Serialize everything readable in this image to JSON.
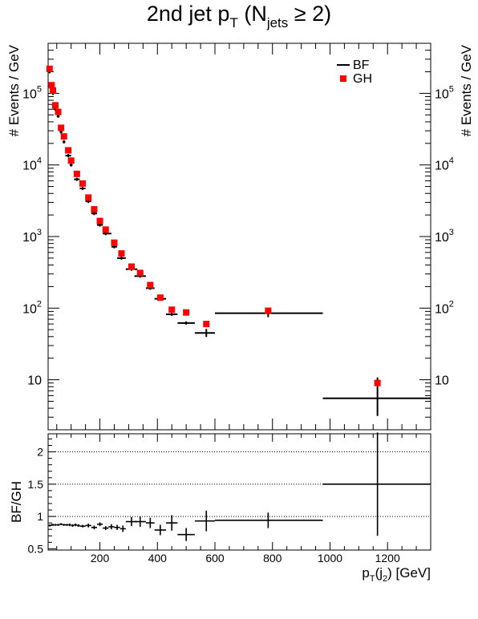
{
  "chart_data": [
    {
      "type": "scatter",
      "title": "2nd jet p",
      "title_sub": "T",
      "title_open": " (N",
      "title_sub2": "jets",
      "title_rest": " ≥ 2)",
      "xlabel": "p",
      "xlabel_sub": "T",
      "xlabel_mid": "(j",
      "xlabel_sub2": "2",
      "xlabel_end": ") [GeV]",
      "ylabel": "# Events / GeV",
      "ylabel_right": "# Events / GeV",
      "yscale": "log",
      "xlim": [
        20,
        1350
      ],
      "ylim": [
        2,
        500000
      ],
      "y_ticks": [
        {
          "v": 10,
          "label": "10",
          "exp": ""
        },
        {
          "v": 100,
          "label": "10",
          "exp": "2"
        },
        {
          "v": 1000,
          "label": "10",
          "exp": "3"
        },
        {
          "v": 10000,
          "label": "10",
          "exp": "4"
        },
        {
          "v": 100000,
          "label": "10",
          "exp": "5"
        }
      ],
      "legend": {
        "position": "top-right",
        "entries": [
          {
            "label": "BF",
            "color": "#000000",
            "marker": "line"
          },
          {
            "label": "GH",
            "color": "#ff0000",
            "marker": "square"
          }
        ]
      },
      "series": [
        {
          "name": "BF",
          "color": "#000000",
          "points": [
            {
              "x": 25,
              "xlo": 20,
              "xhi": 30,
              "y": 200000
            },
            {
              "x": 32,
              "xlo": 30,
              "xhi": 35,
              "y": 115000
            },
            {
              "x": 37,
              "xlo": 35,
              "xhi": 40,
              "y": 100000
            },
            {
              "x": 45,
              "xlo": 40,
              "xhi": 50,
              "y": 60000
            },
            {
              "x": 55,
              "xlo": 50,
              "xhi": 60,
              "y": 48000
            },
            {
              "x": 65,
              "xlo": 60,
              "xhi": 70,
              "y": 29000
            },
            {
              "x": 75,
              "xlo": 70,
              "xhi": 80,
              "y": 21000
            },
            {
              "x": 90,
              "xlo": 80,
              "xhi": 100,
              "y": 13500
            },
            {
              "x": 100,
              "xlo": 95,
              "xhi": 105,
              "y": 10000
            },
            {
              "x": 120,
              "xlo": 110,
              "xhi": 130,
              "y": 6300
            },
            {
              "x": 140,
              "xlo": 130,
              "xhi": 150,
              "y": 4700
            },
            {
              "x": 160,
              "xlo": 150,
              "xhi": 170,
              "y": 3100
            },
            {
              "x": 180,
              "xlo": 170,
              "xhi": 190,
              "y": 2100
            },
            {
              "x": 200,
              "xlo": 190,
              "xhi": 210,
              "y": 1450
            },
            {
              "x": 220,
              "xlo": 210,
              "xhi": 240,
              "y": 1100
            },
            {
              "x": 250,
              "xlo": 240,
              "xhi": 260,
              "y": 720
            },
            {
              "x": 275,
              "xlo": 260,
              "xhi": 290,
              "y": 500
            },
            {
              "x": 310,
              "xlo": 290,
              "xhi": 330,
              "y": 350
            },
            {
              "x": 340,
              "xlo": 320,
              "xhi": 360,
              "y": 280
            },
            {
              "x": 375,
              "xlo": 360,
              "xhi": 390,
              "y": 190
            },
            {
              "x": 410,
              "xlo": 390,
              "xhi": 430,
              "y": 135
            },
            {
              "x": 450,
              "xlo": 430,
              "xhi": 470,
              "y": 82
            },
            {
              "x": 500,
              "xlo": 470,
              "xhi": 530,
              "y": 62
            },
            {
              "x": 570,
              "xlo": 530,
              "xhi": 600,
              "y": 45
            },
            {
              "x": 785,
              "xlo": 600,
              "xhi": 975,
              "y": 85
            },
            {
              "x": 1165,
              "xlo": 975,
              "xhi": 1350,
              "y": 5.5
            }
          ]
        },
        {
          "name": "GH",
          "color": "#ff0000",
          "points": [
            {
              "x": 25,
              "y": 220000
            },
            {
              "x": 32,
              "y": 130000
            },
            {
              "x": 37,
              "y": 110000
            },
            {
              "x": 45,
              "y": 68000
            },
            {
              "x": 55,
              "y": 55000
            },
            {
              "x": 65,
              "y": 33000
            },
            {
              "x": 75,
              "y": 25000
            },
            {
              "x": 90,
              "y": 16000
            },
            {
              "x": 100,
              "y": 11500
            },
            {
              "x": 120,
              "y": 7500
            },
            {
              "x": 140,
              "y": 5500
            },
            {
              "x": 160,
              "y": 3500
            },
            {
              "x": 180,
              "y": 2400
            },
            {
              "x": 200,
              "y": 1650
            },
            {
              "x": 220,
              "y": 1250
            },
            {
              "x": 250,
              "y": 820
            },
            {
              "x": 275,
              "y": 580
            },
            {
              "x": 310,
              "y": 380
            },
            {
              "x": 340,
              "y": 310
            },
            {
              "x": 375,
              "y": 210
            },
            {
              "x": 410,
              "y": 140
            },
            {
              "x": 450,
              "y": 95
            },
            {
              "x": 500,
              "y": 87
            },
            {
              "x": 570,
              "y": 60
            },
            {
              "x": 785,
              "y": 92
            },
            {
              "x": 1165,
              "y": 9
            }
          ]
        }
      ]
    },
    {
      "type": "scatter",
      "ylabel": "BF/GH",
      "xlim": [
        20,
        1350
      ],
      "ylim": [
        0.48,
        2.28
      ],
      "gridlines_y": [
        1,
        1.5,
        2
      ],
      "y_ticks": [
        {
          "v": 0.5,
          "label": "0.5"
        },
        {
          "v": 1,
          "label": "1"
        },
        {
          "v": 1.5,
          "label": "1.5"
        },
        {
          "v": 2,
          "label": "2"
        }
      ],
      "x_ticks": [
        {
          "v": 200,
          "label": "200"
        },
        {
          "v": 400,
          "label": "400"
        },
        {
          "v": 600,
          "label": "600"
        },
        {
          "v": 800,
          "label": "800"
        },
        {
          "v": 1000,
          "label": "1000"
        },
        {
          "v": 1200,
          "label": "1200"
        }
      ],
      "series": [
        {
          "name": "BF/GH",
          "color": "#000000",
          "points": [
            {
              "x": 25,
              "xlo": 20,
              "xhi": 30,
              "y": 0.86,
              "err": 0.015
            },
            {
              "x": 32,
              "xlo": 30,
              "xhi": 35,
              "y": 0.87,
              "err": 0.015
            },
            {
              "x": 37,
              "xlo": 35,
              "xhi": 40,
              "y": 0.87,
              "err": 0.015
            },
            {
              "x": 45,
              "xlo": 40,
              "xhi": 50,
              "y": 0.87,
              "err": 0.015
            },
            {
              "x": 55,
              "xlo": 50,
              "xhi": 60,
              "y": 0.87,
              "err": 0.015
            },
            {
              "x": 65,
              "xlo": 60,
              "xhi": 70,
              "y": 0.88,
              "err": 0.015
            },
            {
              "x": 75,
              "xlo": 70,
              "xhi": 80,
              "y": 0.87,
              "err": 0.015
            },
            {
              "x": 85,
              "xlo": 80,
              "xhi": 90,
              "y": 0.87,
              "err": 0.015
            },
            {
              "x": 95,
              "xlo": 90,
              "xhi": 100,
              "y": 0.87,
              "err": 0.02
            },
            {
              "x": 105,
              "xlo": 100,
              "xhi": 110,
              "y": 0.86,
              "err": 0.02
            },
            {
              "x": 115,
              "xlo": 110,
              "xhi": 120,
              "y": 0.87,
              "err": 0.02
            },
            {
              "x": 125,
              "xlo": 120,
              "xhi": 130,
              "y": 0.86,
              "err": 0.02
            },
            {
              "x": 140,
              "xlo": 130,
              "xhi": 150,
              "y": 0.85,
              "err": 0.02
            },
            {
              "x": 160,
              "xlo": 150,
              "xhi": 170,
              "y": 0.86,
              "err": 0.03
            },
            {
              "x": 180,
              "xlo": 170,
              "xhi": 190,
              "y": 0.83,
              "err": 0.03
            },
            {
              "x": 200,
              "xlo": 190,
              "xhi": 210,
              "y": 0.88,
              "err": 0.03
            },
            {
              "x": 220,
              "xlo": 210,
              "xhi": 230,
              "y": 0.82,
              "err": 0.03
            },
            {
              "x": 240,
              "xlo": 230,
              "xhi": 250,
              "y": 0.84,
              "err": 0.04
            },
            {
              "x": 260,
              "xlo": 250,
              "xhi": 270,
              "y": 0.83,
              "err": 0.04
            },
            {
              "x": 280,
              "xlo": 270,
              "xhi": 290,
              "y": 0.81,
              "err": 0.05
            },
            {
              "x": 310,
              "xlo": 290,
              "xhi": 330,
              "y": 0.92,
              "err": 0.07
            },
            {
              "x": 340,
              "xlo": 320,
              "xhi": 360,
              "y": 0.92,
              "err": 0.08
            },
            {
              "x": 375,
              "xlo": 360,
              "xhi": 390,
              "y": 0.9,
              "err": 0.08
            },
            {
              "x": 410,
              "xlo": 390,
              "xhi": 430,
              "y": 0.79,
              "err": 0.08
            },
            {
              "x": 450,
              "xlo": 430,
              "xhi": 470,
              "y": 0.9,
              "err": 0.12
            },
            {
              "x": 500,
              "xlo": 470,
              "xhi": 530,
              "y": 0.72,
              "err": 0.1
            },
            {
              "x": 570,
              "xlo": 530,
              "xhi": 600,
              "y": 0.93,
              "err": 0.16
            },
            {
              "x": 785,
              "xlo": 600,
              "xhi": 975,
              "y": 0.94,
              "err": 0.12
            },
            {
              "x": 1165,
              "xlo": 975,
              "xhi": 1350,
              "y": 1.5,
              "err": 0.8
            }
          ]
        }
      ]
    }
  ]
}
